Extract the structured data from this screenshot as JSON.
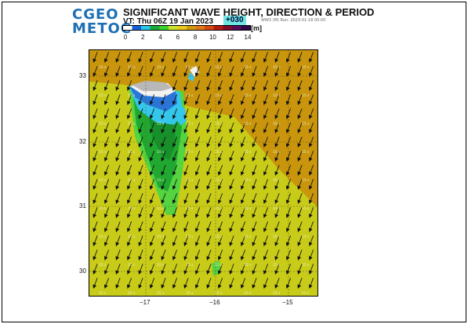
{
  "header": {
    "logo_line1": "CGEO",
    "logo_line2": "METOC",
    "title": "SIGNIFICANT WAVE HEIGHT, DIRECTION & PERIOD",
    "valid_time": "VT: Thu 06Z 19 Jan 2023",
    "forecast_hour": "+030",
    "run_info": "WW3 (M) Run: 2023-01-18 00:00"
  },
  "legend": {
    "unit": "[m]",
    "ticks": [
      "0",
      "2",
      "4",
      "6",
      "8",
      "10",
      "12",
      "14"
    ],
    "colors": [
      "#ffffff",
      "#1560d6",
      "#26c8ea",
      "#1aa838",
      "#3cd22e",
      "#c9e02c",
      "#e9c81c",
      "#d09a10",
      "#e07818",
      "#d64a10",
      "#b41c10",
      "#7e0c28",
      "#5a0a58",
      "#2c0648"
    ]
  },
  "map": {
    "lon_ticks": [
      "−17",
      "−16",
      "−15"
    ],
    "lat_ticks": [
      "33",
      "32",
      "31",
      "30"
    ],
    "colors": {
      "brown": "#c8950c",
      "yellow": "#c8cc18",
      "lightgreen": "#54d440",
      "green": "#20a830",
      "darkgreen": "#178f2a",
      "cyan": "#35c6ec",
      "blue": "#2b75d6",
      "white": "#f2f2f2",
      "land": "#b8b8b8"
    },
    "period_label": "15 s",
    "arrow_direction_deg": 160
  }
}
